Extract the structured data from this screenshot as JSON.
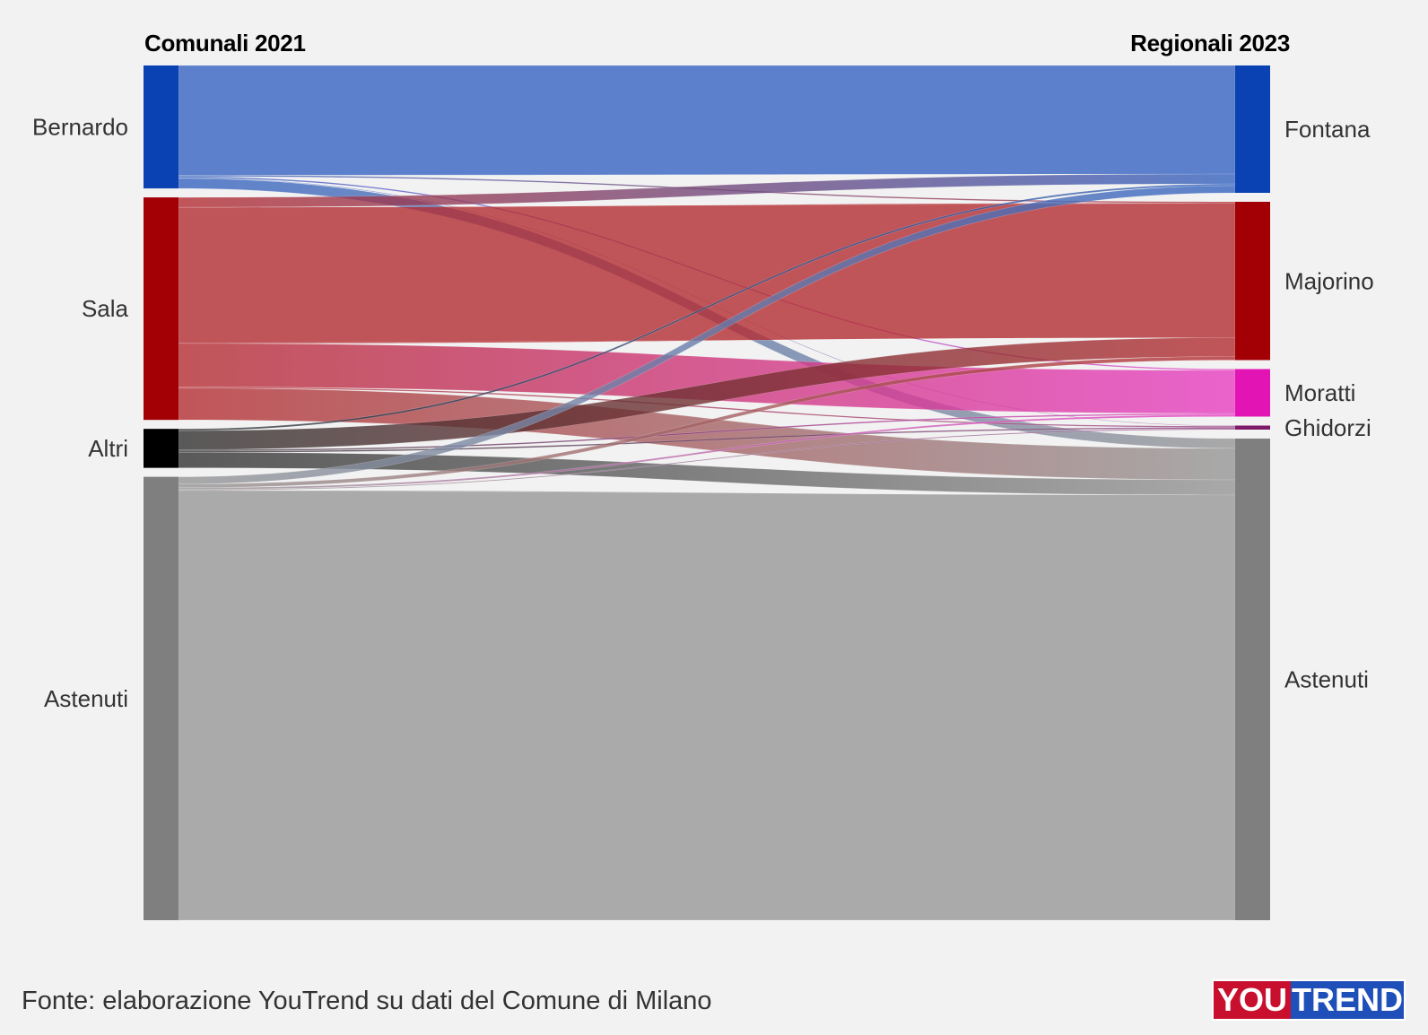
{
  "chart_data": {
    "type": "sankey",
    "left_header": "Comunali 2021",
    "right_header": "Regionali 2023",
    "left_nodes": [
      {
        "name": "Bernardo",
        "color": "#0a42b3"
      },
      {
        "name": "Sala",
        "color": "#a30006"
      },
      {
        "name": "Altri",
        "color": "#000000"
      },
      {
        "name": "Astenuti",
        "color": "#7f7f7f"
      }
    ],
    "right_nodes": [
      {
        "name": "Fontana",
        "color": "#0a42b3"
      },
      {
        "name": "Majorino",
        "color": "#a30006"
      },
      {
        "name": "Moratti",
        "color": "#e215b4"
      },
      {
        "name": "Ghidorzi",
        "color": "#7d1a6a"
      },
      {
        "name": "Astenuti",
        "color": "#7f7f7f"
      }
    ],
    "flows": [
      {
        "source": "Bernardo",
        "target": "Fontana",
        "value": 121
      },
      {
        "source": "Bernardo",
        "target": "Majorino",
        "value": 1.5
      },
      {
        "source": "Bernardo",
        "target": "Moratti",
        "value": 1.5
      },
      {
        "source": "Bernardo",
        "target": "Ghidorzi",
        "value": 0.6
      },
      {
        "source": "Bernardo",
        "target": "Astenuti",
        "value": 11
      },
      {
        "source": "Sala",
        "target": "Fontana",
        "value": 11
      },
      {
        "source": "Sala",
        "target": "Majorino",
        "value": 150
      },
      {
        "source": "Sala",
        "target": "Moratti",
        "value": 48
      },
      {
        "source": "Sala",
        "target": "Ghidorzi",
        "value": 1.4
      },
      {
        "source": "Sala",
        "target": "Astenuti",
        "value": 35
      },
      {
        "source": "Altri",
        "target": "Fontana",
        "value": 2
      },
      {
        "source": "Altri",
        "target": "Majorino",
        "value": 21
      },
      {
        "source": "Altri",
        "target": "Moratti",
        "value": 1.5
      },
      {
        "source": "Altri",
        "target": "Ghidorzi",
        "value": 1.5
      },
      {
        "source": "Altri",
        "target": "Astenuti",
        "value": 17
      },
      {
        "source": "Astenuti",
        "target": "Fontana",
        "value": 8
      },
      {
        "source": "Astenuti",
        "target": "Majorino",
        "value": 4
      },
      {
        "source": "Astenuti",
        "target": "Moratti",
        "value": 2
      },
      {
        "source": "Astenuti",
        "target": "Ghidorzi",
        "value": 1
      },
      {
        "source": "Astenuti",
        "target": "Astenuti",
        "value": 474
      }
    ]
  },
  "source_note": "Fonte: elaborazione YouTrend su dati del Comune di Milano",
  "logo": {
    "you": "YOU",
    "trend": "TREND"
  }
}
